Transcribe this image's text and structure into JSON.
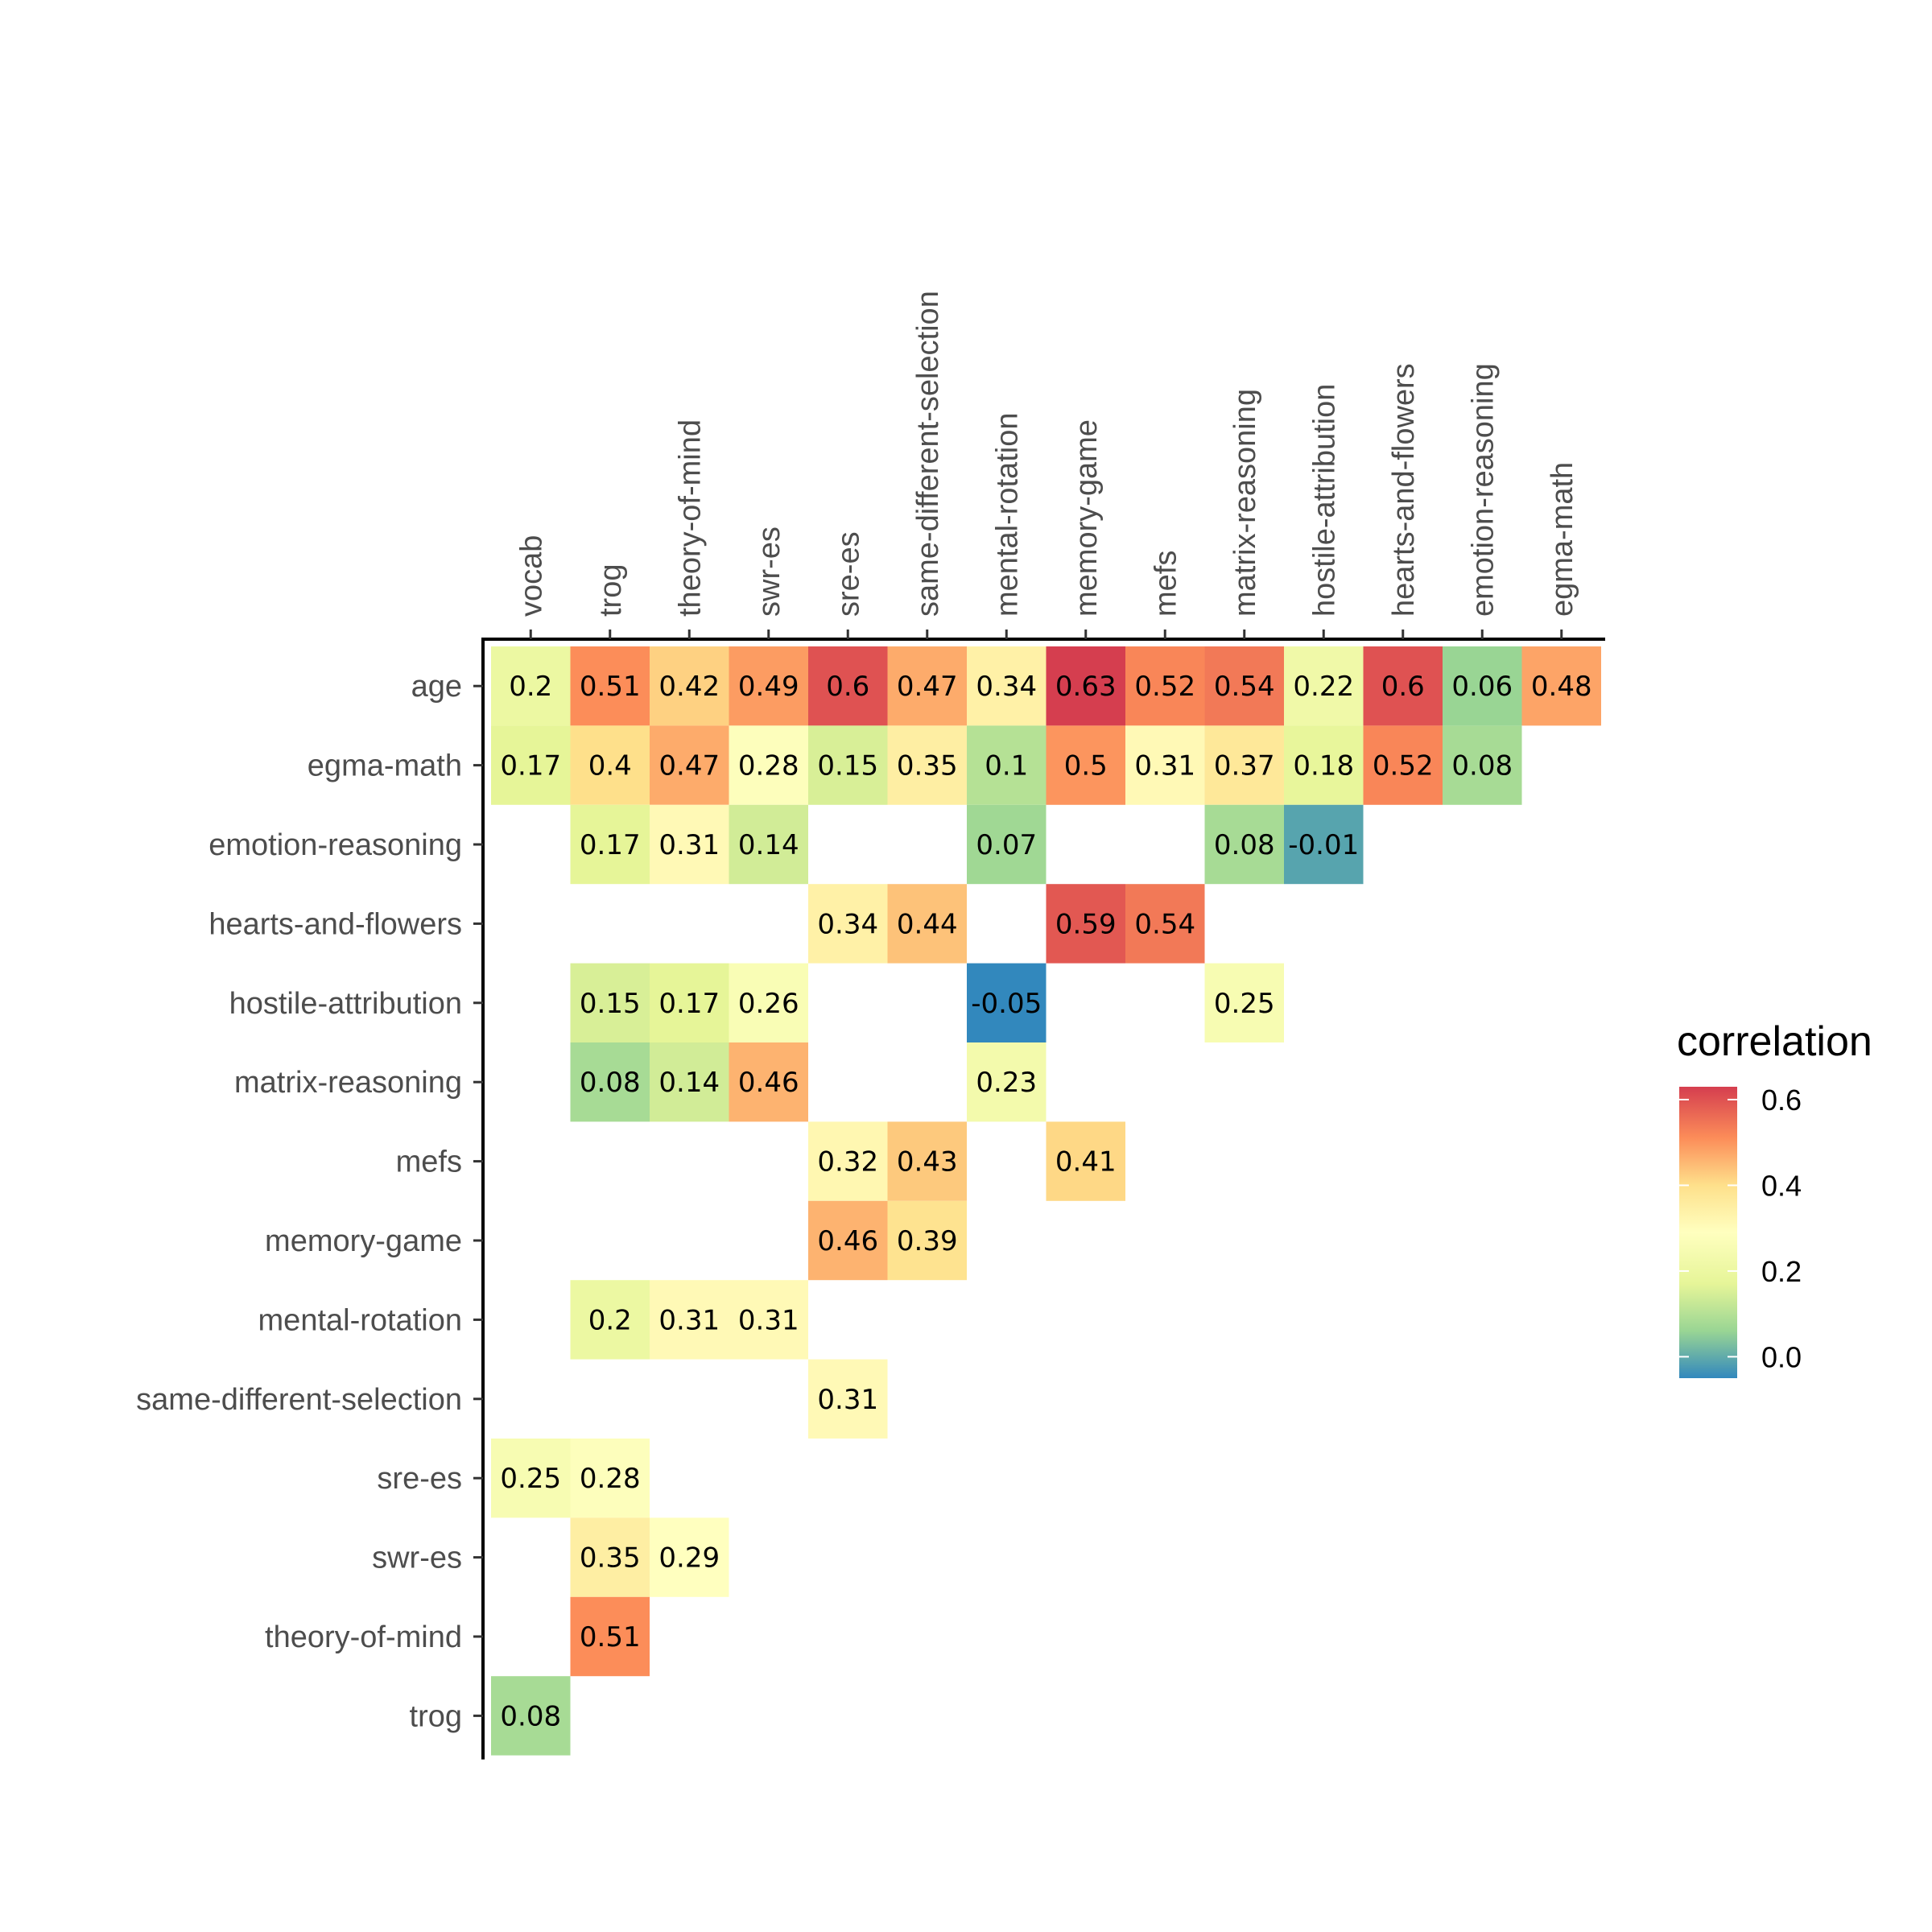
{
  "chart_data": {
    "type": "heatmap",
    "x_categories": [
      "vocab",
      "trog",
      "theory-of-mind",
      "swr-es",
      "sre-es",
      "same-different-selection",
      "mental-rotation",
      "memory-game",
      "mefs",
      "matrix-reasoning",
      "hostile-attribution",
      "hearts-and-flowers",
      "emotion-reasoning",
      "egma-math"
    ],
    "y_categories": [
      "age",
      "egma-math",
      "emotion-reasoning",
      "hearts-and-flowers",
      "hostile-attribution",
      "matrix-reasoning",
      "mefs",
      "memory-game",
      "mental-rotation",
      "same-different-selection",
      "sre-es",
      "swr-es",
      "theory-of-mind",
      "trog"
    ],
    "cells": [
      {
        "x": "vocab",
        "y": "age",
        "value": 0.2,
        "label": "0.2"
      },
      {
        "x": "trog",
        "y": "age",
        "value": 0.51,
        "label": "0.51"
      },
      {
        "x": "theory-of-mind",
        "y": "age",
        "value": 0.42,
        "label": "0.42"
      },
      {
        "x": "swr-es",
        "y": "age",
        "value": 0.49,
        "label": "0.49"
      },
      {
        "x": "sre-es",
        "y": "age",
        "value": 0.6,
        "label": "0.6"
      },
      {
        "x": "same-different-selection",
        "y": "age",
        "value": 0.47,
        "label": "0.47"
      },
      {
        "x": "mental-rotation",
        "y": "age",
        "value": 0.34,
        "label": "0.34"
      },
      {
        "x": "memory-game",
        "y": "age",
        "value": 0.63,
        "label": "0.63"
      },
      {
        "x": "mefs",
        "y": "age",
        "value": 0.52,
        "label": "0.52"
      },
      {
        "x": "matrix-reasoning",
        "y": "age",
        "value": 0.54,
        "label": "0.54"
      },
      {
        "x": "hostile-attribution",
        "y": "age",
        "value": 0.22,
        "label": "0.22"
      },
      {
        "x": "hearts-and-flowers",
        "y": "age",
        "value": 0.6,
        "label": "0.6"
      },
      {
        "x": "emotion-reasoning",
        "y": "age",
        "value": 0.06,
        "label": "0.06"
      },
      {
        "x": "egma-math",
        "y": "age",
        "value": 0.48,
        "label": "0.48"
      },
      {
        "x": "vocab",
        "y": "egma-math",
        "value": 0.17,
        "label": "0.17"
      },
      {
        "x": "trog",
        "y": "egma-math",
        "value": 0.4,
        "label": "0.4"
      },
      {
        "x": "theory-of-mind",
        "y": "egma-math",
        "value": 0.47,
        "label": "0.47"
      },
      {
        "x": "swr-es",
        "y": "egma-math",
        "value": 0.28,
        "label": "0.28"
      },
      {
        "x": "sre-es",
        "y": "egma-math",
        "value": 0.15,
        "label": "0.15"
      },
      {
        "x": "same-different-selection",
        "y": "egma-math",
        "value": 0.35,
        "label": "0.35"
      },
      {
        "x": "mental-rotation",
        "y": "egma-math",
        "value": 0.1,
        "label": "0.1"
      },
      {
        "x": "memory-game",
        "y": "egma-math",
        "value": 0.5,
        "label": "0.5"
      },
      {
        "x": "mefs",
        "y": "egma-math",
        "value": 0.31,
        "label": "0.31"
      },
      {
        "x": "matrix-reasoning",
        "y": "egma-math",
        "value": 0.37,
        "label": "0.37"
      },
      {
        "x": "hostile-attribution",
        "y": "egma-math",
        "value": 0.18,
        "label": "0.18"
      },
      {
        "x": "hearts-and-flowers",
        "y": "egma-math",
        "value": 0.52,
        "label": "0.52"
      },
      {
        "x": "emotion-reasoning",
        "y": "egma-math",
        "value": 0.08,
        "label": "0.08"
      },
      {
        "x": "trog",
        "y": "emotion-reasoning",
        "value": 0.17,
        "label": "0.17"
      },
      {
        "x": "theory-of-mind",
        "y": "emotion-reasoning",
        "value": 0.31,
        "label": "0.31"
      },
      {
        "x": "swr-es",
        "y": "emotion-reasoning",
        "value": 0.14,
        "label": "0.14"
      },
      {
        "x": "mental-rotation",
        "y": "emotion-reasoning",
        "value": 0.07,
        "label": "0.07"
      },
      {
        "x": "matrix-reasoning",
        "y": "emotion-reasoning",
        "value": 0.08,
        "label": "0.08"
      },
      {
        "x": "hostile-attribution",
        "y": "emotion-reasoning",
        "value": -0.01,
        "label": "-0.01"
      },
      {
        "x": "sre-es",
        "y": "hearts-and-flowers",
        "value": 0.34,
        "label": "0.34"
      },
      {
        "x": "same-different-selection",
        "y": "hearts-and-flowers",
        "value": 0.44,
        "label": "0.44"
      },
      {
        "x": "memory-game",
        "y": "hearts-and-flowers",
        "value": 0.59,
        "label": "0.59"
      },
      {
        "x": "mefs",
        "y": "hearts-and-flowers",
        "value": 0.54,
        "label": "0.54"
      },
      {
        "x": "trog",
        "y": "hostile-attribution",
        "value": 0.15,
        "label": "0.15"
      },
      {
        "x": "theory-of-mind",
        "y": "hostile-attribution",
        "value": 0.17,
        "label": "0.17"
      },
      {
        "x": "swr-es",
        "y": "hostile-attribution",
        "value": 0.26,
        "label": "0.26"
      },
      {
        "x": "mental-rotation",
        "y": "hostile-attribution",
        "value": -0.05,
        "label": "-0.05"
      },
      {
        "x": "matrix-reasoning",
        "y": "hostile-attribution",
        "value": 0.25,
        "label": "0.25"
      },
      {
        "x": "trog",
        "y": "matrix-reasoning",
        "value": 0.08,
        "label": "0.08"
      },
      {
        "x": "theory-of-mind",
        "y": "matrix-reasoning",
        "value": 0.14,
        "label": "0.14"
      },
      {
        "x": "swr-es",
        "y": "matrix-reasoning",
        "value": 0.46,
        "label": "0.46"
      },
      {
        "x": "mental-rotation",
        "y": "matrix-reasoning",
        "value": 0.23,
        "label": "0.23"
      },
      {
        "x": "sre-es",
        "y": "mefs",
        "value": 0.32,
        "label": "0.32"
      },
      {
        "x": "same-different-selection",
        "y": "mefs",
        "value": 0.43,
        "label": "0.43"
      },
      {
        "x": "memory-game",
        "y": "mefs",
        "value": 0.41,
        "label": "0.41"
      },
      {
        "x": "sre-es",
        "y": "memory-game",
        "value": 0.46,
        "label": "0.46"
      },
      {
        "x": "same-different-selection",
        "y": "memory-game",
        "value": 0.39,
        "label": "0.39"
      },
      {
        "x": "trog",
        "y": "mental-rotation",
        "value": 0.2,
        "label": "0.2"
      },
      {
        "x": "theory-of-mind",
        "y": "mental-rotation",
        "value": 0.31,
        "label": "0.31"
      },
      {
        "x": "swr-es",
        "y": "mental-rotation",
        "value": 0.31,
        "label": "0.31"
      },
      {
        "x": "sre-es",
        "y": "same-different-selection",
        "value": 0.31,
        "label": "0.31"
      },
      {
        "x": "vocab",
        "y": "sre-es",
        "value": 0.25,
        "label": "0.25"
      },
      {
        "x": "trog",
        "y": "sre-es",
        "value": 0.28,
        "label": "0.28"
      },
      {
        "x": "trog",
        "y": "swr-es",
        "value": 0.35,
        "label": "0.35"
      },
      {
        "x": "theory-of-mind",
        "y": "swr-es",
        "value": 0.29,
        "label": "0.29"
      },
      {
        "x": "trog",
        "y": "theory-of-mind",
        "value": 0.51,
        "label": "0.51"
      },
      {
        "x": "vocab",
        "y": "trog",
        "value": 0.08,
        "label": "0.08"
      }
    ],
    "color_scale": {
      "palette": "Spectral",
      "domain": [
        -0.05,
        0.63
      ],
      "stops": [
        {
          "value": -0.05,
          "color": "#3288bd"
        },
        {
          "value": 0.06,
          "color": "#99d594"
        },
        {
          "value": 0.17,
          "color": "#e6f598"
        },
        {
          "value": 0.29,
          "color": "#ffffbf"
        },
        {
          "value": 0.4,
          "color": "#fee08b"
        },
        {
          "value": 0.51,
          "color": "#fc8d59"
        },
        {
          "value": 0.63,
          "color": "#d53e4f"
        }
      ]
    },
    "legend": {
      "title": "correlation",
      "ticks": [
        0.6,
        0.4,
        0.2,
        0.0
      ],
      "tick_labels": [
        "0.6",
        "0.4",
        "0.2",
        "0.0"
      ],
      "position": "right"
    },
    "x_axis_position": "top",
    "grid": false
  }
}
